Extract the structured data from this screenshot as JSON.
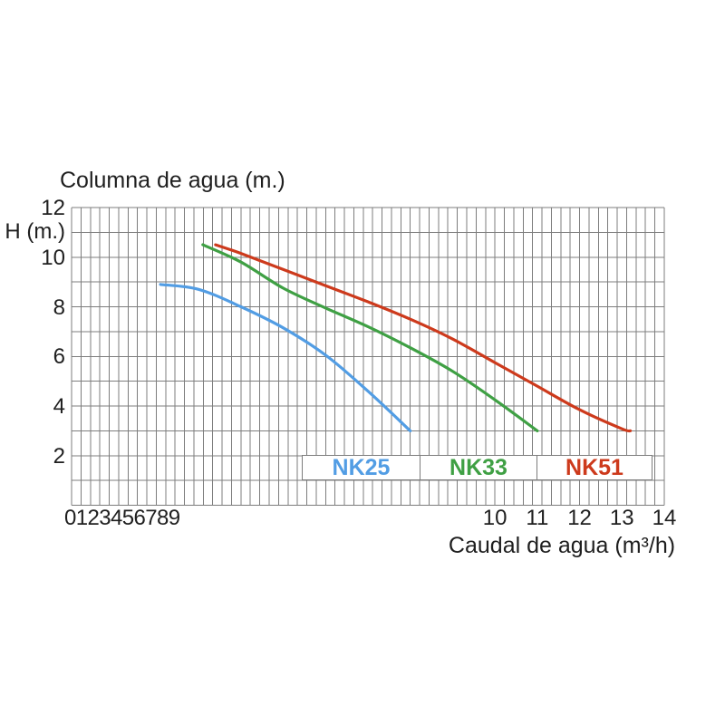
{
  "chart": {
    "title": "Columna de agua (m.)",
    "y_axis_label": "H (m.)",
    "x_axis_title": "Caudal de agua (m³/h)",
    "colors": {
      "grid": "#7d7d7d",
      "text": "#1f1f1f",
      "background": "#ffffff"
    }
  },
  "chart_data": {
    "type": "line",
    "title": "Columna de agua (m.)",
    "xlabel": "Caudal de agua (m³/h)",
    "ylabel": "H (m.)",
    "xlim": [
      0,
      14
    ],
    "ylim": [
      0,
      12
    ],
    "grid": "on",
    "grid_minor_x_step": 0.25,
    "grid_major_y_step": 1,
    "y_ticks": [
      {
        "label": "12",
        "value": 12
      },
      {
        "label": "10",
        "value": 10
      },
      {
        "label": "8",
        "value": 8
      },
      {
        "label": "6",
        "value": 6
      },
      {
        "label": "4",
        "value": 4
      },
      {
        "label": "2",
        "value": 2
      }
    ],
    "x_ticks_compressed_text": "0123456789",
    "x_ticks": [
      {
        "label": "10",
        "value": 10
      },
      {
        "label": "11",
        "value": 11
      },
      {
        "label": "12",
        "value": 12
      },
      {
        "label": "13",
        "value": 13
      },
      {
        "label": "14",
        "value": 14
      }
    ],
    "legend": {
      "position": "inside-bottom",
      "entries": [
        "NK25",
        "NK33",
        "NK51"
      ]
    },
    "series": [
      {
        "name": "NK25",
        "color": "#529de4",
        "points": [
          [
            2.1,
            8.9
          ],
          [
            3,
            8.7
          ],
          [
            4,
            8.0
          ],
          [
            5,
            7.15
          ],
          [
            6,
            6.05
          ],
          [
            7,
            4.6
          ],
          [
            8,
            3.0
          ]
        ]
      },
      {
        "name": "NK33",
        "color": "#3fa044",
        "points": [
          [
            3.1,
            10.5
          ],
          [
            4,
            9.8
          ],
          [
            5,
            8.75
          ],
          [
            6,
            7.95
          ],
          [
            7,
            7.2
          ],
          [
            8,
            6.35
          ],
          [
            9,
            5.4
          ],
          [
            10,
            4.25
          ],
          [
            11,
            3.0
          ]
        ]
      },
      {
        "name": "NK51",
        "color": "#cd3a1c",
        "points": [
          [
            3.4,
            10.5
          ],
          [
            4,
            10.15
          ],
          [
            5,
            9.5
          ],
          [
            6,
            8.85
          ],
          [
            7,
            8.2
          ],
          [
            8,
            7.5
          ],
          [
            9,
            6.7
          ],
          [
            10,
            5.75
          ],
          [
            11,
            4.8
          ],
          [
            12,
            3.85
          ],
          [
            13,
            3.08
          ],
          [
            13.2,
            3.0
          ]
        ]
      }
    ]
  }
}
